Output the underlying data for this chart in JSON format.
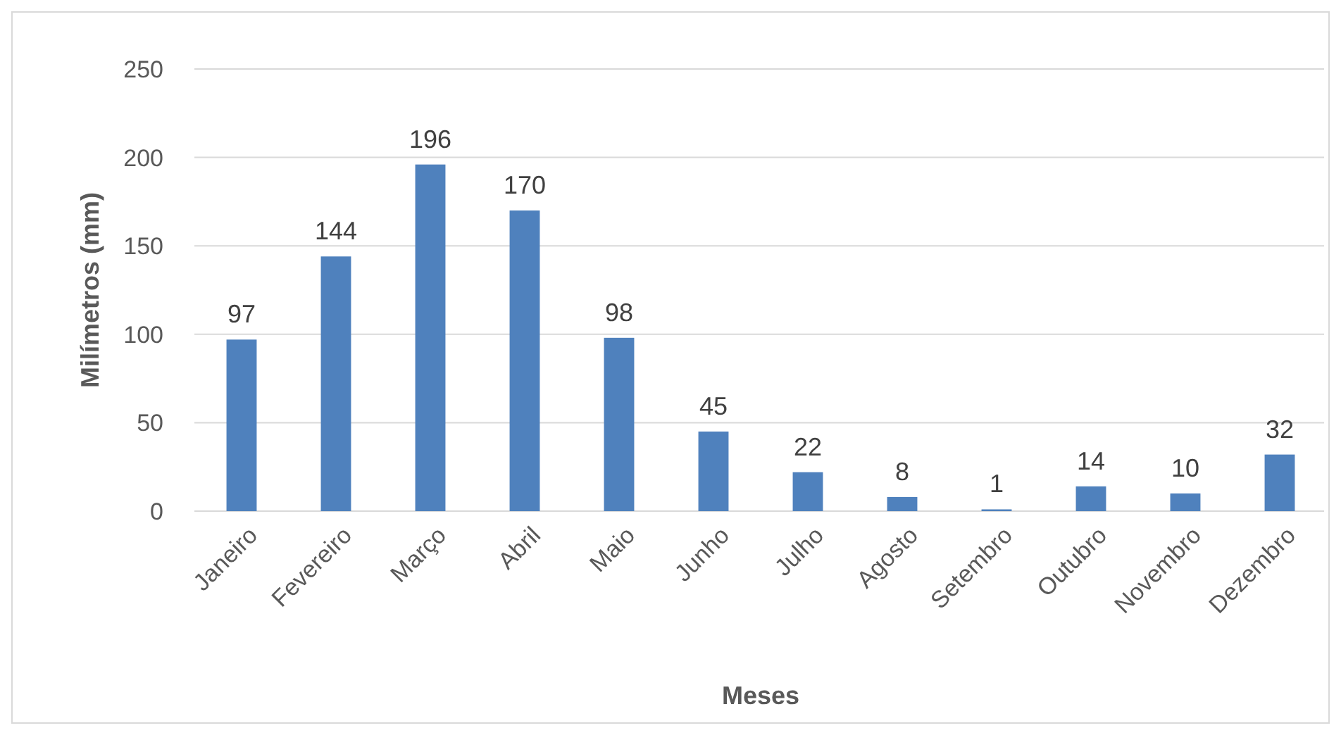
{
  "chart_data": {
    "type": "bar",
    "xlabel": "Meses",
    "ylabel": "Milímetros (mm)",
    "categories": [
      "Janeiro",
      "Fevereiro",
      "Março",
      "Abril",
      "Maio",
      "Junho",
      "Julho",
      "Agosto",
      "Setembro",
      "Outubro",
      "Novembro",
      "Dezembro"
    ],
    "values": [
      97,
      144,
      196,
      170,
      98,
      45,
      22,
      8,
      1,
      14,
      10,
      32
    ],
    "color": "#4f81bd",
    "ylim": [
      0,
      250
    ],
    "yticks": [
      0,
      50,
      100,
      150,
      200,
      250
    ],
    "grid": "y",
    "data_labels": true
  }
}
